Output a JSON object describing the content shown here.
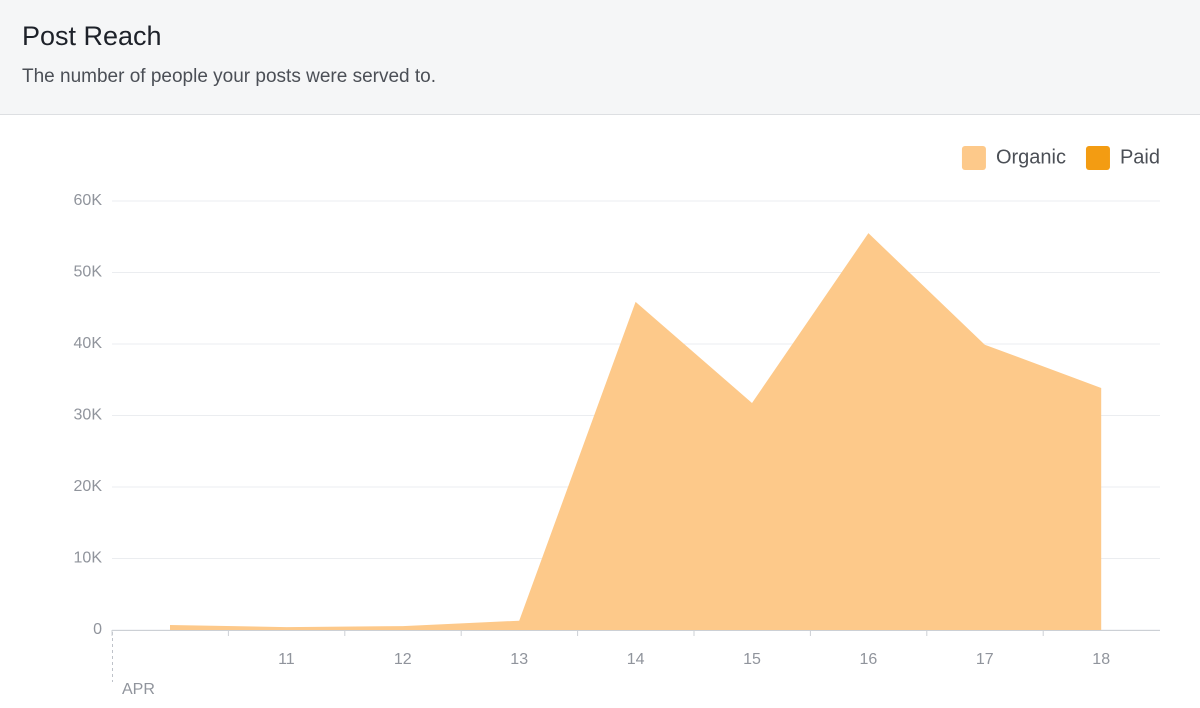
{
  "chart_data": {
    "type": "area",
    "title": "Post Reach",
    "subtitle": "The number of people your posts were served to.",
    "categories": [
      null,
      "11",
      "12",
      "13",
      "14",
      "15",
      "16",
      "17",
      "18"
    ],
    "month_label": "APR",
    "series": [
      {
        "name": "Organic",
        "color": "#fdc98a",
        "values": [
          700,
          400,
          550,
          1300,
          45900,
          31750,
          55500,
          39900,
          33850
        ]
      },
      {
        "name": "Paid",
        "color": "#f39c12",
        "values": [
          0,
          0,
          0,
          0,
          0,
          0,
          0,
          0,
          0
        ]
      }
    ],
    "ylim": [
      0,
      60000
    ],
    "yticks": [
      0,
      {
        "value": 10000,
        "label": "10K"
      },
      {
        "value": 20000,
        "label": "20K"
      },
      {
        "value": 30000,
        "label": "30K"
      },
      {
        "value": 40000,
        "label": "40K"
      },
      {
        "value": 50000,
        "label": "50K"
      },
      {
        "value": 60000,
        "label": "60K"
      }
    ],
    "grid": true,
    "legend": "top-right"
  }
}
